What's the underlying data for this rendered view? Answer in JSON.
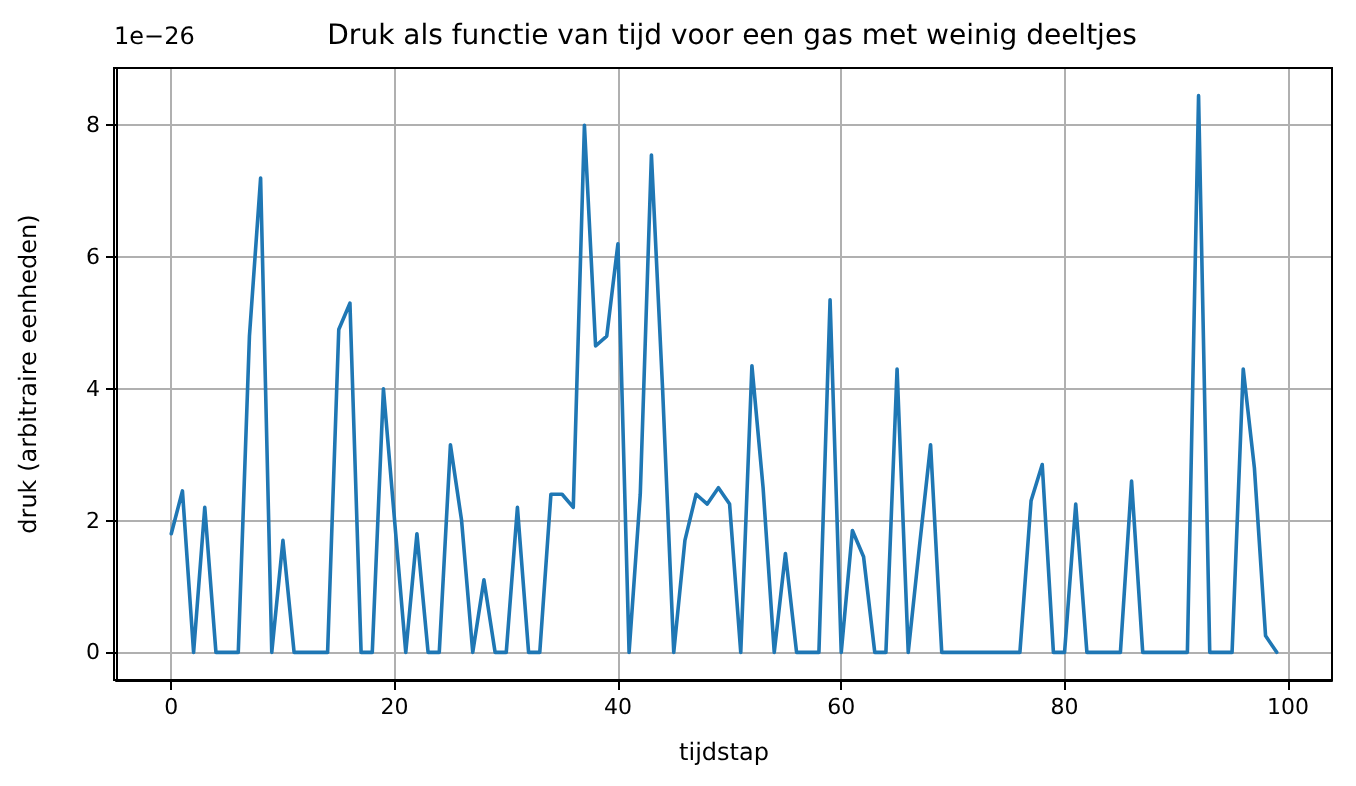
{
  "chart_data": {
    "type": "line",
    "title": "Druk als functie van tijd voor een gas met weinig deeltjes",
    "xlabel": "tijdstap",
    "ylabel": "druk (arbitraire eenheden)",
    "annotations": [
      "1e−26"
    ],
    "x": [
      0,
      1,
      2,
      3,
      4,
      5,
      6,
      7,
      8,
      9,
      10,
      11,
      12,
      13,
      14,
      15,
      16,
      17,
      18,
      19,
      20,
      21,
      22,
      23,
      24,
      25,
      26,
      27,
      28,
      29,
      30,
      31,
      32,
      33,
      34,
      35,
      36,
      37,
      38,
      39,
      40,
      41,
      42,
      43,
      44,
      45,
      46,
      47,
      48,
      49,
      50,
      51,
      52,
      53,
      54,
      55,
      56,
      57,
      58,
      59,
      60,
      61,
      62,
      63,
      64,
      65,
      66,
      67,
      68,
      69,
      70,
      71,
      72,
      73,
      74,
      75,
      76,
      77,
      78,
      79,
      80,
      81,
      82,
      83,
      84,
      85,
      86,
      87,
      88,
      89,
      90,
      91,
      92,
      93,
      94,
      95,
      96,
      97,
      98,
      99
    ],
    "series": [
      {
        "color": "#1f77b4",
        "values": [
          1.8,
          2.45,
          0,
          2.2,
          0,
          0,
          0,
          4.8,
          7.2,
          0,
          1.7,
          0,
          0,
          0,
          0,
          4.9,
          5.3,
          0,
          0,
          4.0,
          2.0,
          0,
          1.8,
          0,
          0,
          3.15,
          2.0,
          0,
          1.1,
          0,
          0,
          2.2,
          0,
          0,
          2.4,
          2.4,
          2.2,
          8.0,
          4.65,
          4.8,
          6.2,
          0,
          2.4,
          7.55,
          4.0,
          0,
          1.7,
          2.4,
          2.25,
          2.5,
          2.25,
          0,
          4.35,
          2.5,
          0,
          1.5,
          0,
          0,
          0,
          5.35,
          0,
          1.85,
          1.45,
          0,
          0,
          4.3,
          0,
          1.6,
          3.15,
          0,
          0,
          0,
          0,
          0,
          0,
          0,
          0,
          2.3,
          2.85,
          0,
          0,
          2.25,
          0,
          0,
          0,
          0,
          2.6,
          0,
          0,
          0,
          0,
          0,
          8.45,
          0,
          0,
          0,
          4.3,
          2.8,
          0.25,
          0
        ]
      }
    ],
    "xlim": [
      -4.95,
      103.95
    ],
    "ylim": [
      -0.42,
      8.87
    ],
    "xticks": [
      0,
      20,
      40,
      60,
      80,
      100
    ],
    "yticks": [
      0,
      2,
      4,
      6,
      8
    ],
    "grid": true,
    "marker": "none",
    "line_style": "solid"
  }
}
